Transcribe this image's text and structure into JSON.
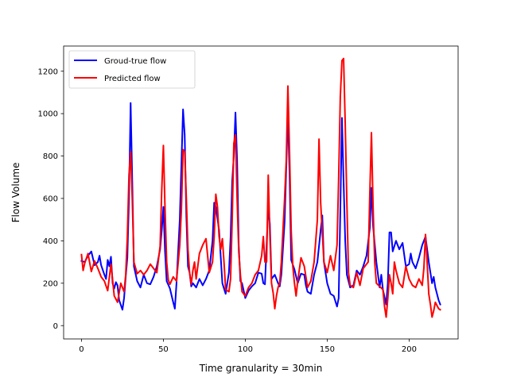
{
  "chart_data": {
    "type": "line",
    "title": "",
    "xlabel": "Time granularity = 30min",
    "ylabel": "Flow Volume",
    "xlim": [
      -10.9,
      229.9
    ],
    "ylim": [
      -62.8,
      1318.8
    ],
    "xticks": [
      0,
      50,
      100,
      150,
      200
    ],
    "yticks": [
      0,
      200,
      400,
      600,
      800,
      1000,
      1200
    ],
    "grid": false,
    "legend_position": "top-left",
    "series": [
      {
        "name": "Groud-true flow",
        "color": "#0000ff",
        "points": [
          [
            0,
            305
          ],
          [
            2,
            300
          ],
          [
            4,
            330
          ],
          [
            6,
            350
          ],
          [
            8,
            285
          ],
          [
            10,
            300
          ],
          [
            11,
            330
          ],
          [
            12,
            285
          ],
          [
            14,
            240
          ],
          [
            15,
            220
          ],
          [
            16,
            310
          ],
          [
            17,
            280
          ],
          [
            18,
            325
          ],
          [
            19,
            200
          ],
          [
            20,
            175
          ],
          [
            21,
            205
          ],
          [
            22,
            190
          ],
          [
            23,
            120
          ],
          [
            25,
            75
          ],
          [
            26,
            130
          ],
          [
            27,
            230
          ],
          [
            28,
            320
          ],
          [
            29,
            600
          ],
          [
            30,
            1050
          ],
          [
            31,
            680
          ],
          [
            32,
            280
          ],
          [
            34,
            210
          ],
          [
            36,
            180
          ],
          [
            38,
            240
          ],
          [
            40,
            200
          ],
          [
            42,
            195
          ],
          [
            44,
            230
          ],
          [
            46,
            280
          ],
          [
            48,
            360
          ],
          [
            49,
            450
          ],
          [
            50,
            560
          ],
          [
            51,
            350
          ],
          [
            52,
            210
          ],
          [
            54,
            175
          ],
          [
            56,
            110
          ],
          [
            57,
            80
          ],
          [
            58,
            200
          ],
          [
            60,
            500
          ],
          [
            62,
            1020
          ],
          [
            63,
            900
          ],
          [
            64,
            520
          ],
          [
            65,
            280
          ],
          [
            66,
            250
          ],
          [
            67,
            185
          ],
          [
            68,
            200
          ],
          [
            70,
            180
          ],
          [
            72,
            220
          ],
          [
            74,
            190
          ],
          [
            76,
            220
          ],
          [
            78,
            260
          ],
          [
            80,
            400
          ],
          [
            81,
            580
          ],
          [
            82,
            560
          ],
          [
            84,
            450
          ],
          [
            86,
            200
          ],
          [
            88,
            150
          ],
          [
            90,
            250
          ],
          [
            91,
            410
          ],
          [
            92,
            680
          ],
          [
            93,
            800
          ],
          [
            94,
            1005
          ],
          [
            95,
            780
          ],
          [
            96,
            380
          ],
          [
            97,
            210
          ],
          [
            98,
            200
          ],
          [
            100,
            130
          ],
          [
            102,
            165
          ],
          [
            104,
            185
          ],
          [
            106,
            200
          ],
          [
            108,
            250
          ],
          [
            110,
            245
          ],
          [
            111,
            200
          ],
          [
            112,
            195
          ],
          [
            114,
            560
          ],
          [
            115,
            480
          ],
          [
            116,
            220
          ],
          [
            118,
            240
          ],
          [
            120,
            200
          ],
          [
            121,
            185
          ],
          [
            122,
            240
          ],
          [
            124,
            490
          ],
          [
            126,
            1000
          ],
          [
            127,
            720
          ],
          [
            128,
            310
          ],
          [
            130,
            265
          ],
          [
            132,
            200
          ],
          [
            134,
            245
          ],
          [
            136,
            240
          ],
          [
            137,
            190
          ],
          [
            138,
            160
          ],
          [
            140,
            150
          ],
          [
            142,
            240
          ],
          [
            144,
            300
          ],
          [
            146,
            450
          ],
          [
            147,
            520
          ],
          [
            148,
            300
          ],
          [
            150,
            200
          ],
          [
            152,
            150
          ],
          [
            154,
            140
          ],
          [
            156,
            90
          ],
          [
            157,
            130
          ],
          [
            158,
            540
          ],
          [
            159,
            980
          ],
          [
            160,
            680
          ],
          [
            161,
            400
          ],
          [
            162,
            240
          ],
          [
            164,
            180
          ],
          [
            166,
            190
          ],
          [
            168,
            260
          ],
          [
            170,
            240
          ],
          [
            172,
            280
          ],
          [
            174,
            330
          ],
          [
            176,
            460
          ],
          [
            177,
            650
          ],
          [
            178,
            470
          ],
          [
            180,
            300
          ],
          [
            182,
            180
          ],
          [
            183,
            240
          ],
          [
            184,
            170
          ],
          [
            186,
            100
          ],
          [
            187,
            200
          ],
          [
            188,
            440
          ],
          [
            189,
            440
          ],
          [
            190,
            350
          ],
          [
            192,
            400
          ],
          [
            194,
            360
          ],
          [
            196,
            390
          ],
          [
            198,
            280
          ],
          [
            200,
            290
          ],
          [
            201,
            340
          ],
          [
            202,
            300
          ],
          [
            204,
            270
          ],
          [
            206,
            320
          ],
          [
            208,
            380
          ],
          [
            210,
            420
          ],
          [
            212,
            300
          ],
          [
            214,
            200
          ],
          [
            215,
            230
          ],
          [
            216,
            180
          ],
          [
            218,
            120
          ],
          [
            219,
            100
          ]
        ]
      },
      {
        "name": "Predicted flow",
        "color": "#ff0000",
        "points": [
          [
            0,
            335
          ],
          [
            1,
            260
          ],
          [
            2,
            295
          ],
          [
            4,
            340
          ],
          [
            6,
            255
          ],
          [
            8,
            305
          ],
          [
            10,
            270
          ],
          [
            12,
            230
          ],
          [
            14,
            210
          ],
          [
            16,
            165
          ],
          [
            18,
            290
          ],
          [
            20,
            140
          ],
          [
            22,
            110
          ],
          [
            24,
            200
          ],
          [
            26,
            160
          ],
          [
            27,
            240
          ],
          [
            28,
            420
          ],
          [
            29,
            710
          ],
          [
            30,
            820
          ],
          [
            31,
            600
          ],
          [
            32,
            300
          ],
          [
            34,
            245
          ],
          [
            36,
            260
          ],
          [
            38,
            240
          ],
          [
            40,
            260
          ],
          [
            42,
            290
          ],
          [
            44,
            270
          ],
          [
            46,
            250
          ],
          [
            48,
            375
          ],
          [
            49,
            640
          ],
          [
            50,
            850
          ],
          [
            51,
            550
          ],
          [
            52,
            300
          ],
          [
            53,
            215
          ],
          [
            54,
            195
          ],
          [
            56,
            230
          ],
          [
            58,
            210
          ],
          [
            60,
            380
          ],
          [
            61,
            550
          ],
          [
            62,
            830
          ],
          [
            63,
            820
          ],
          [
            64,
            600
          ],
          [
            65,
            360
          ],
          [
            66,
            250
          ],
          [
            67,
            195
          ],
          [
            68,
            260
          ],
          [
            69,
            300
          ],
          [
            70,
            220
          ],
          [
            72,
            340
          ],
          [
            74,
            380
          ],
          [
            76,
            410
          ],
          [
            78,
            250
          ],
          [
            80,
            300
          ],
          [
            81,
            420
          ],
          [
            82,
            620
          ],
          [
            83,
            560
          ],
          [
            84,
            420
          ],
          [
            85,
            360
          ],
          [
            86,
            410
          ],
          [
            87,
            300
          ],
          [
            88,
            170
          ],
          [
            90,
            160
          ],
          [
            91,
            220
          ],
          [
            92,
            500
          ],
          [
            93,
            860
          ],
          [
            94,
            900
          ],
          [
            95,
            600
          ],
          [
            96,
            350
          ],
          [
            97,
            240
          ],
          [
            98,
            160
          ],
          [
            100,
            140
          ],
          [
            102,
            180
          ],
          [
            104,
            200
          ],
          [
            106,
            240
          ],
          [
            108,
            260
          ],
          [
            110,
            330
          ],
          [
            111,
            420
          ],
          [
            112,
            300
          ],
          [
            113,
            300
          ],
          [
            114,
            710
          ],
          [
            115,
            430
          ],
          [
            116,
            200
          ],
          [
            117,
            155
          ],
          [
            118,
            80
          ],
          [
            119,
            140
          ],
          [
            120,
            180
          ],
          [
            121,
            200
          ],
          [
            122,
            300
          ],
          [
            124,
            600
          ],
          [
            125,
            780
          ],
          [
            126,
            1130
          ],
          [
            127,
            820
          ],
          [
            128,
            450
          ],
          [
            129,
            280
          ],
          [
            130,
            200
          ],
          [
            131,
            140
          ],
          [
            132,
            210
          ],
          [
            134,
            320
          ],
          [
            136,
            280
          ],
          [
            138,
            180
          ],
          [
            140,
            210
          ],
          [
            142,
            300
          ],
          [
            144,
            500
          ],
          [
            145,
            880
          ],
          [
            146,
            580
          ],
          [
            148,
            300
          ],
          [
            150,
            250
          ],
          [
            152,
            330
          ],
          [
            154,
            260
          ],
          [
            156,
            380
          ],
          [
            157,
            700
          ],
          [
            158,
            1080
          ],
          [
            159,
            1250
          ],
          [
            160,
            1260
          ],
          [
            161,
            950
          ],
          [
            162,
            580
          ],
          [
            163,
            250
          ],
          [
            164,
            190
          ],
          [
            166,
            180
          ],
          [
            168,
            250
          ],
          [
            170,
            190
          ],
          [
            172,
            270
          ],
          [
            174,
            290
          ],
          [
            175,
            300
          ],
          [
            176,
            620
          ],
          [
            177,
            910
          ],
          [
            178,
            560
          ],
          [
            179,
            300
          ],
          [
            180,
            200
          ],
          [
            182,
            185
          ],
          [
            184,
            170
          ],
          [
            185,
            90
          ],
          [
            186,
            40
          ],
          [
            187,
            130
          ],
          [
            188,
            240
          ],
          [
            189,
            200
          ],
          [
            190,
            150
          ],
          [
            191,
            300
          ],
          [
            192,
            260
          ],
          [
            194,
            200
          ],
          [
            196,
            180
          ],
          [
            198,
            280
          ],
          [
            200,
            220
          ],
          [
            202,
            190
          ],
          [
            204,
            180
          ],
          [
            206,
            220
          ],
          [
            208,
            190
          ],
          [
            209,
            270
          ],
          [
            210,
            430
          ],
          [
            211,
            300
          ],
          [
            212,
            150
          ],
          [
            213,
            100
          ],
          [
            214,
            40
          ],
          [
            215,
            70
          ],
          [
            216,
            110
          ],
          [
            218,
            80
          ],
          [
            219,
            75
          ]
        ]
      }
    ]
  }
}
